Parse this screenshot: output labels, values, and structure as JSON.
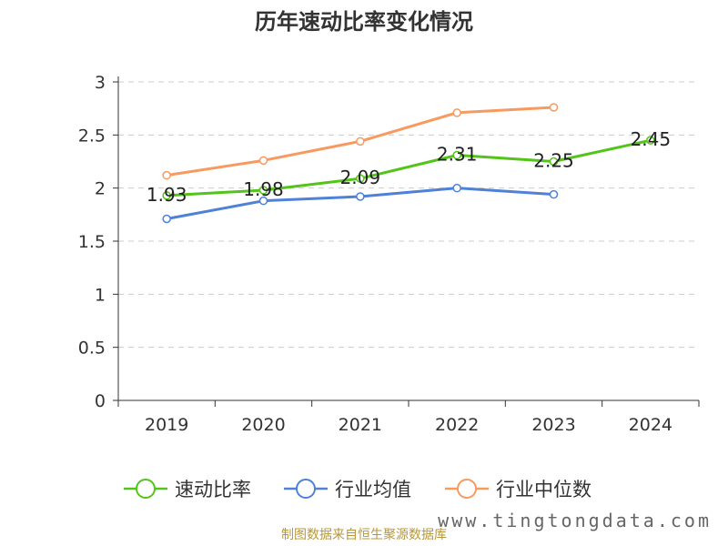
{
  "chart_data": {
    "type": "line",
    "title": "历年速动比率变化情况",
    "categories": [
      "2019",
      "2020",
      "2021",
      "2022",
      "2023",
      "2024"
    ],
    "ylim": [
      0,
      3
    ],
    "yticks": [
      "0",
      "0.5",
      "1",
      "1.5",
      "2",
      "2.5",
      "3"
    ],
    "grid": true,
    "legend_position": "bottom",
    "series": [
      {
        "name": "速动比率",
        "color": "#52c41a",
        "values": [
          1.93,
          1.98,
          2.09,
          2.31,
          2.25,
          2.45
        ],
        "labels": [
          "1.93",
          "1.98",
          "2.09",
          "2.31",
          "2.25",
          "2.45"
        ]
      },
      {
        "name": "行业均值",
        "color": "#4f81d6",
        "values": [
          1.71,
          1.88,
          1.92,
          2.0,
          1.94,
          null
        ]
      },
      {
        "name": "行业中位数",
        "color": "#f79a60",
        "values": [
          2.12,
          2.26,
          2.44,
          2.71,
          2.76,
          null
        ]
      }
    ]
  },
  "footer": {
    "source": "制图数据来自恒生聚源数据库",
    "watermark": "www.tingtongdata.com"
  }
}
